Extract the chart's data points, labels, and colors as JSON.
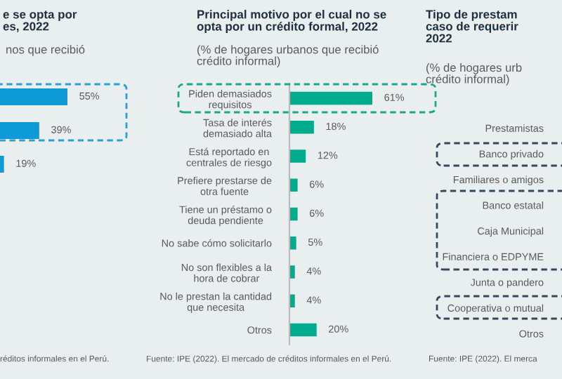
{
  "chart_data": [
    {
      "type": "bar",
      "orientation": "horizontal",
      "title": "e se opta por\nes, 2022",
      "subtitle": "nos que recibió",
      "categories": [
        null,
        null,
        null
      ],
      "values": [
        55,
        39,
        19
      ],
      "value_labels": [
        "55%",
        "39%",
        "19%"
      ],
      "color": "#0d9ad6",
      "tick_labels": false,
      "annotations": [
        "réditos informales en el Perú."
      ]
    },
    {
      "type": "bar",
      "orientation": "horizontal",
      "title": "Principal motivo por el cual no se\nopta por un crédito formal, 2022",
      "subtitle": "(% de hogares urbanos que recibió\ncrédito informal)",
      "categories": [
        "Piden demasiados\nrequisitos",
        "Tasa de interés\ndemasiado alta",
        "Está reportado en\ncentrales de riesgo",
        "Prefiere prestarse de\notra fuente",
        "Tiene un préstamo o\ndeuda pendiente",
        "No sabe cómo solicitarlo",
        "No son flexibles a la\nhora de cobrar",
        "No le prestan la cantidad\nque necesita",
        "Otros"
      ],
      "values": [
        61,
        18,
        12,
        6,
        6,
        5,
        4,
        4,
        20
      ],
      "value_labels": [
        "61%",
        "18%",
        "12%",
        "6%",
        "6%",
        "5%",
        "4%",
        "4%",
        "20%"
      ],
      "color": "#00ab8e",
      "tick_labels": "y",
      "annotations": [
        "Fuente: IPE (2022). El mercado de créditos informales en el Perú."
      ]
    },
    {
      "type": "other",
      "title": "Tipo de prestam\ncaso de requerir\n2022",
      "subtitle": "(% de hogares urb\ncrédito informal)",
      "categories": [
        "Prestamistas",
        "Banco privado",
        "Familiares o amigos",
        "Banco estatal",
        "Caja Municipal",
        "Financiera o EDPYME",
        "Junta o pandero",
        "Cooperativa o mutual",
        "Otros"
      ],
      "annotations": [
        "Fuente: IPE (2022). El merca"
      ]
    }
  ]
}
